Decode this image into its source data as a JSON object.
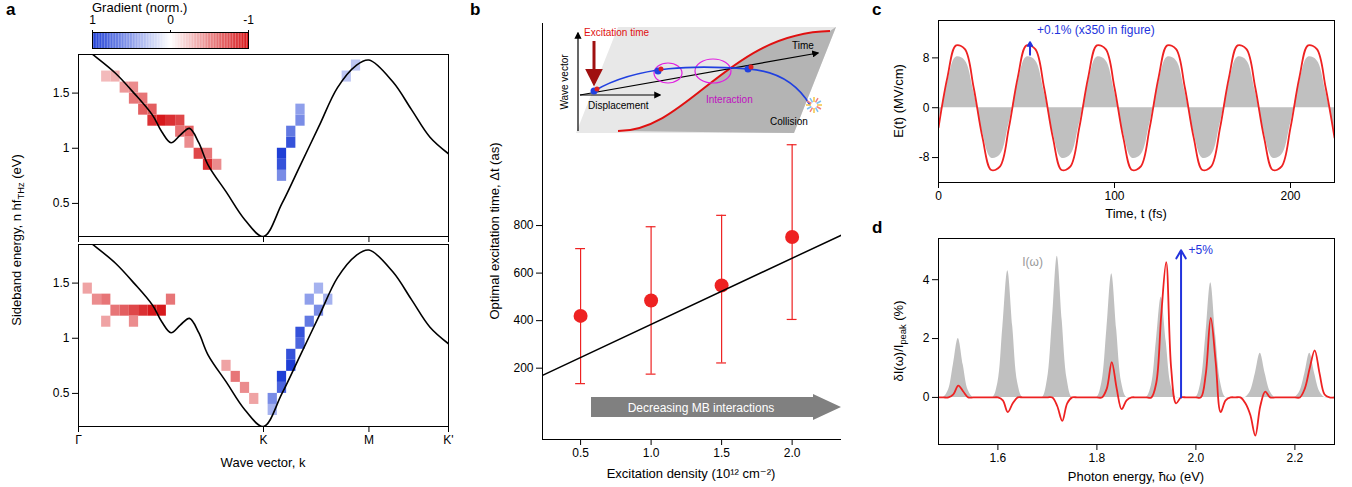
{
  "chart_data": [
    {
      "panel": "a",
      "type": "heatmap",
      "colorbar": {
        "label": "Gradient (norm.)",
        "lim": [
          -1,
          1
        ],
        "ticks": [
          1,
          0,
          -1
        ],
        "colors": [
          "#d7191c",
          "#ffffff",
          "#1f3fd6"
        ]
      },
      "ylabel": "Sideband energy, n hfTHz (eV)",
      "ylabel_sub": "THz",
      "xlim": [
        0,
        2
      ],
      "ylim": [
        0.2,
        1.85
      ],
      "xticks": [
        {
          "value": 0,
          "label": "Γ"
        },
        {
          "value": 1,
          "label": "K"
        },
        {
          "value": 1.57,
          "label": "M"
        },
        {
          "value": 2,
          "label": "K'"
        }
      ],
      "yticks": [
        0.5,
        1,
        1.5
      ],
      "tick_labels": "y",
      "cells": [
        [
          0.15,
          1.65,
          -0.3
        ],
        [
          0.2,
          1.65,
          -0.35
        ],
        [
          0.25,
          1.55,
          -0.45
        ],
        [
          0.3,
          1.45,
          -0.6
        ],
        [
          0.3,
          1.55,
          -0.5
        ],
        [
          0.35,
          1.35,
          -0.7
        ],
        [
          0.35,
          1.45,
          -0.6
        ],
        [
          0.4,
          1.25,
          -0.9
        ],
        [
          0.4,
          1.35,
          -0.7
        ],
        [
          0.45,
          1.25,
          -1
        ],
        [
          0.5,
          1.25,
          -0.9
        ],
        [
          0.55,
          1.25,
          -0.8
        ],
        [
          0.55,
          1.15,
          -0.6
        ],
        [
          0.6,
          1.15,
          -0.7
        ],
        [
          0.6,
          1.05,
          -0.5
        ],
        [
          0.65,
          0.95,
          -0.8
        ],
        [
          0.7,
          0.85,
          -0.9
        ],
        [
          0.7,
          0.95,
          -0.6
        ],
        [
          0.75,
          0.85,
          -0.5
        ],
        [
          1.1,
          0.75,
          0.6
        ],
        [
          1.1,
          0.85,
          0.9
        ],
        [
          1.1,
          0.95,
          1
        ],
        [
          1.15,
          1.05,
          0.9
        ],
        [
          1.15,
          1.15,
          0.7
        ],
        [
          1.2,
          1.25,
          0.6
        ],
        [
          1.2,
          1.35,
          0.5
        ],
        [
          1.45,
          1.65,
          0.3
        ],
        [
          1.5,
          1.75,
          0.3
        ]
      ],
      "band": {
        "color": "#000000",
        "x": [
          0,
          0.1,
          0.2,
          0.3,
          0.4,
          0.45,
          0.5,
          0.55,
          0.6,
          0.65,
          0.7,
          0.8,
          0.9,
          1.0,
          1.1,
          1.2,
          1.3,
          1.4,
          1.5,
          1.57,
          1.7,
          1.8,
          1.9,
          2.0
        ],
        "values": [
          1.95,
          1.82,
          1.68,
          1.5,
          1.3,
          1.15,
          1.05,
          1.12,
          1.18,
          1.05,
          0.85,
          0.6,
          0.35,
          0.2,
          0.5,
          0.85,
          1.2,
          1.55,
          1.75,
          1.8,
          1.6,
          1.35,
          1.1,
          0.95
        ]
      }
    },
    {
      "type": "heatmap",
      "xlabel": "Wave vector, k",
      "xlim": [
        0,
        2
      ],
      "ylim": [
        0.2,
        1.85
      ],
      "xticks": [
        {
          "value": 0,
          "label": "Γ"
        },
        {
          "value": 1,
          "label": "K"
        },
        {
          "value": 1.57,
          "label": "M"
        },
        {
          "value": 2,
          "label": "K'"
        }
      ],
      "yticks": [
        0.5,
        1,
        1.5
      ],
      "cells": [
        [
          0.05,
          1.45,
          -0.4
        ],
        [
          0.1,
          1.35,
          -0.5
        ],
        [
          0.15,
          1.35,
          -0.6
        ],
        [
          0.15,
          1.15,
          -0.4
        ],
        [
          0.2,
          1.25,
          -0.6
        ],
        [
          0.25,
          1.25,
          -0.7
        ],
        [
          0.3,
          1.25,
          -0.8
        ],
        [
          0.3,
          1.15,
          -0.5
        ],
        [
          0.35,
          1.25,
          -0.9
        ],
        [
          0.4,
          1.25,
          -1
        ],
        [
          0.45,
          1.25,
          -1
        ],
        [
          0.5,
          1.35,
          -0.6
        ],
        [
          0.8,
          0.75,
          -0.4
        ],
        [
          0.85,
          0.65,
          -0.6
        ],
        [
          0.9,
          0.55,
          -0.5
        ],
        [
          0.95,
          0.45,
          -0.4
        ],
        [
          1.05,
          0.35,
          0.4
        ],
        [
          1.05,
          0.45,
          0.6
        ],
        [
          1.1,
          0.55,
          0.8
        ],
        [
          1.1,
          0.65,
          1
        ],
        [
          1.15,
          0.75,
          1
        ],
        [
          1.15,
          0.85,
          0.9
        ],
        [
          1.2,
          0.95,
          0.8
        ],
        [
          1.2,
          1.05,
          0.9
        ],
        [
          1.25,
          1.15,
          0.7
        ],
        [
          1.3,
          1.25,
          0.6
        ],
        [
          1.25,
          1.35,
          0.5
        ],
        [
          1.35,
          1.35,
          0.4
        ],
        [
          1.3,
          1.45,
          0.4
        ]
      ],
      "band": {
        "color": "#000000",
        "x": [
          0,
          0.1,
          0.2,
          0.3,
          0.4,
          0.45,
          0.5,
          0.55,
          0.6,
          0.65,
          0.7,
          0.8,
          0.9,
          1.0,
          1.1,
          1.2,
          1.3,
          1.4,
          1.5,
          1.57,
          1.7,
          1.8,
          1.9,
          2.0
        ],
        "values": [
          1.95,
          1.82,
          1.68,
          1.5,
          1.3,
          1.15,
          1.05,
          1.12,
          1.18,
          1.05,
          0.85,
          0.6,
          0.35,
          0.2,
          0.5,
          0.85,
          1.2,
          1.55,
          1.75,
          1.8,
          1.6,
          1.35,
          1.1,
          0.95
        ]
      }
    },
    {
      "panel": "b",
      "type": "scatter",
      "xlabel": "Excitation density (10¹² cm⁻²)",
      "ylabel": "Optimal excitation time, Δt (as)",
      "xlim": [
        0.23,
        2.35
      ],
      "ylim": [
        -100,
        1650
      ],
      "xticks": [
        0.5,
        {
          "value": 1,
          "label": "1.0"
        },
        1.5,
        {
          "value": 2,
          "label": "2.0"
        }
      ],
      "yticks": [
        200,
        400,
        600,
        800
      ],
      "series": [
        {
          "type": "scatter",
          "color": "#ee2222",
          "marker": "circle",
          "x": [
            0.5,
            1,
            1.5,
            2
          ],
          "values": [
            420,
            485,
            548,
            752
          ],
          "error_low": [
            135,
            175,
            222,
            405
          ],
          "error_high": [
            703,
            795,
            843,
            1140
          ]
        },
        {
          "type": "line",
          "color": "#000000",
          "x": [
            0.23,
            2.35
          ],
          "values": [
            170,
            760
          ]
        }
      ],
      "annotations": [
        {
          "text": "Decreasing MB interactions"
        }
      ],
      "inset": {
        "excitation_time": "Excitation time",
        "wave_vector": "Wave vector",
        "displacement": "Displacement",
        "time": "Time",
        "interaction": "Interaction",
        "collision": "Collision"
      }
    },
    {
      "panel": "c",
      "type": "line",
      "xlabel": "Time, t (fs)",
      "ylabel": "E(t) (MV/cm)",
      "xlim": [
        0,
        225
      ],
      "ylim": [
        -12,
        14
      ],
      "xticks": [
        0,
        100,
        200
      ],
      "yticks": [
        -8,
        0,
        8
      ],
      "x": [
        0,
        5,
        10,
        15,
        20,
        25,
        30,
        35,
        40,
        45,
        50,
        55,
        60,
        65,
        70,
        75,
        80,
        85,
        90,
        95,
        100,
        105,
        110,
        115,
        120,
        125,
        130,
        135,
        140,
        145,
        150,
        155,
        160,
        165,
        170,
        175,
        180,
        185,
        190,
        195,
        200,
        205,
        210,
        215,
        220,
        225
      ],
      "series": [
        {
          "type": "area",
          "color": "#c0c0c0",
          "values": [
            -2.6,
            3.9,
            8.1,
            7.6,
            2.6,
            -3.9,
            -8.1,
            -7.6,
            -2.6,
            3.9,
            8.1,
            7.6,
            2.6,
            -3.9,
            -8.1,
            -7.6,
            -2.6,
            3.9,
            8.1,
            7.6,
            2.6,
            -3.9,
            -8.1,
            -7.6,
            -2.6,
            3.9,
            8.1,
            7.6,
            2.6,
            -3.9,
            -8.1,
            -7.6,
            -2.6,
            3.9,
            8.1,
            7.6,
            2.6,
            -3.9,
            -8.1,
            -7.6,
            -2.6,
            3.9,
            8.1,
            7.6,
            2.6,
            -3.9
          ]
        },
        {
          "type": "line",
          "color": "#ee2222",
          "values": [
            -3.2,
            4.8,
            10.0,
            9.4,
            3.2,
            -4.8,
            -10.0,
            -9.4,
            -3.2,
            4.8,
            10.0,
            9.4,
            3.2,
            -4.8,
            -10.0,
            -9.4,
            -3.2,
            4.8,
            10.0,
            9.4,
            3.2,
            -4.8,
            -10.0,
            -9.4,
            -3.2,
            4.8,
            10.0,
            9.4,
            3.2,
            -4.8,
            -10.0,
            -9.4,
            -3.2,
            4.8,
            10.0,
            9.4,
            3.2,
            -4.8,
            -10.0,
            -9.4,
            -3.2,
            4.8,
            10.0,
            9.4,
            3.2,
            -4.8
          ]
        }
      ],
      "annotations": [
        {
          "text": "+0.1% (x350 in figure)",
          "x": 56,
          "y": 12.5,
          "color": "#2233dd",
          "arrow": {
            "x": 52,
            "y1": 8.5,
            "y2": 10.5
          }
        }
      ]
    },
    {
      "panel": "d",
      "type": "line",
      "xlabel": "Photon energy, ħω (eV)",
      "ylabel": "δI(ω)/Ipeak (%)",
      "ylabel_sub": "peak",
      "xlim": [
        1.48,
        2.28
      ],
      "ylim": [
        -1.6,
        5.4
      ],
      "xticks": [
        1.6,
        1.8,
        {
          "value": 2,
          "label": "2.0"
        },
        2.2
      ],
      "yticks": [
        0,
        2,
        4
      ],
      "x": [
        1.48,
        1.49,
        1.5,
        1.51,
        1.52,
        1.53,
        1.54,
        1.55,
        1.56,
        1.57,
        1.58,
        1.59,
        1.6,
        1.61,
        1.62,
        1.63,
        1.64,
        1.65,
        1.66,
        1.67,
        1.68,
        1.69,
        1.7,
        1.71,
        1.72,
        1.73,
        1.74,
        1.75,
        1.76,
        1.77,
        1.78,
        1.79,
        1.8,
        1.81,
        1.82,
        1.83,
        1.84,
        1.85,
        1.86,
        1.87,
        1.88,
        1.89,
        1.9,
        1.91,
        1.92,
        1.93,
        1.94,
        1.95,
        1.96,
        1.97,
        1.98,
        1.99,
        2,
        2.01,
        2.02,
        2.03,
        2.04,
        2.05,
        2.06,
        2.07,
        2.08,
        2.09,
        2.1,
        2.11,
        2.12,
        2.13,
        2.14,
        2.15,
        2.16,
        2.17,
        2.18,
        2.19,
        2.2,
        2.21,
        2.22,
        2.23,
        2.24,
        2.25,
        2.26,
        2.27,
        2.28
      ],
      "series": [
        {
          "type": "area",
          "color": "#c0c0c0",
          "values": [
            0,
            0,
            0.24,
            1.1,
            2.0,
            1.1,
            0.24,
            0,
            0,
            0,
            0,
            0,
            0.5,
            2.4,
            4.3,
            2.4,
            0.5,
            0,
            0,
            0,
            0,
            0,
            0.6,
            2.6,
            4.8,
            2.6,
            0.6,
            0,
            0,
            0,
            0,
            0,
            0,
            0.5,
            2.3,
            4.2,
            2.3,
            0.5,
            0,
            0,
            0,
            0,
            0,
            0.4,
            1.9,
            3.4,
            1.9,
            0.4,
            0,
            0,
            0,
            0,
            0,
            0.5,
            2.1,
            3.9,
            2.1,
            0.5,
            0,
            0,
            0,
            0,
            0,
            0.2,
            0.8,
            1.5,
            0.8,
            0.2,
            0,
            0,
            0,
            0,
            0,
            0.2,
            0.8,
            1.5,
            0.8,
            0.2,
            0,
            0,
            0
          ]
        },
        {
          "type": "line",
          "color": "#ee2222",
          "values": [
            0,
            0,
            0,
            0.1,
            0.4,
            0.2,
            0,
            0,
            0,
            0,
            0,
            0,
            0,
            -0.1,
            -0.5,
            -0.2,
            0,
            0,
            0,
            0,
            0,
            0,
            0,
            0,
            -0.3,
            -0.8,
            -0.2,
            0,
            0,
            0,
            0,
            0,
            0,
            0,
            0.3,
            1.2,
            0.3,
            -0.4,
            -0.1,
            0,
            0,
            0,
            0,
            0,
            0.5,
            2.8,
            4.6,
            1.0,
            -0.2,
            0,
            0,
            0,
            0,
            0,
            0.8,
            2.7,
            1.2,
            -0.5,
            -0.1,
            0,
            0,
            0,
            -0.2,
            -0.6,
            -1.3,
            -0.3,
            0.2,
            0,
            0,
            0,
            0,
            0,
            0,
            0,
            0.3,
            1.0,
            1.6,
            0.8,
            0.1,
            0,
            0
          ]
        }
      ],
      "annotations": [
        {
          "text": "I(ω)",
          "x": 1.67,
          "y": 4.6,
          "color": "#999999"
        },
        {
          "text": "+5%",
          "x": 1.985,
          "y": 5.0,
          "color": "#2233dd",
          "arrow": {
            "x": 1.97,
            "y1": 0,
            "y2": 5
          }
        }
      ]
    }
  ]
}
